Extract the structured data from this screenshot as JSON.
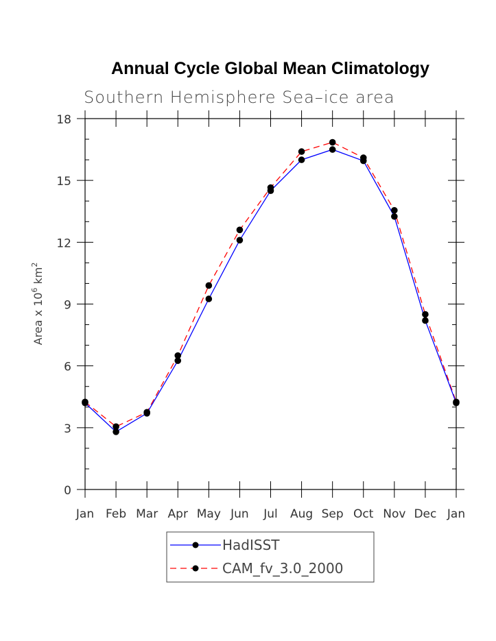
{
  "chart_data": {
    "type": "line",
    "title": "Annual Cycle Global Mean Climatology",
    "subtitle": "Southern Hemisphere Sea–ice area",
    "ylabel_text": "Area x 10",
    "ylabel_exp1": "6",
    "ylabel_unit": " km",
    "ylabel_exp2": "2",
    "xlabel": "",
    "categories": [
      "Jan",
      "Feb",
      "Mar",
      "Apr",
      "May",
      "Jun",
      "Jul",
      "Aug",
      "Sep",
      "Oct",
      "Nov",
      "Dec",
      "Jan"
    ],
    "ylim": [
      0,
      18
    ],
    "yticks": [
      0,
      3,
      6,
      9,
      12,
      15,
      18
    ],
    "grid": false,
    "legend_position": "bottom",
    "series": [
      {
        "name": "HadISST",
        "color": "#0000ff",
        "dash": "solid",
        "values": [
          4.2,
          2.8,
          3.7,
          6.25,
          9.25,
          12.1,
          14.5,
          16.0,
          16.5,
          15.95,
          13.25,
          8.2,
          4.2
        ]
      },
      {
        "name": "CAM_fv_3.0_2000",
        "color": "#ff0000",
        "dash": "dashed",
        "values": [
          4.25,
          3.05,
          3.75,
          6.5,
          9.9,
          12.6,
          14.65,
          16.4,
          16.85,
          16.1,
          13.55,
          8.5,
          4.25
        ]
      }
    ]
  }
}
